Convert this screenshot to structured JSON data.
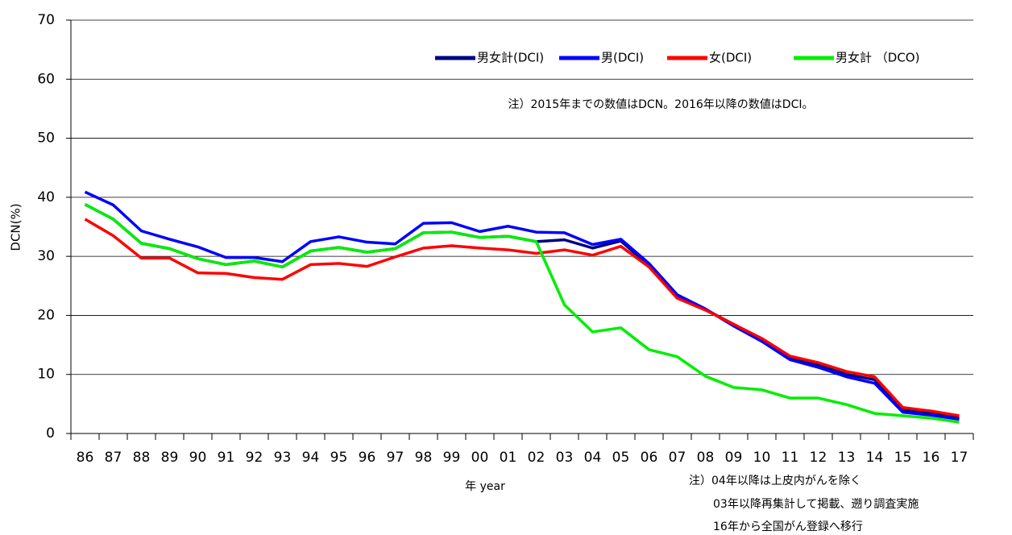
{
  "chart_data": {
    "type": "line",
    "x_label": "年 year",
    "y_label": "DCN(%)",
    "categories": [
      "86",
      "87",
      "88",
      "89",
      "90",
      "91",
      "92",
      "93",
      "94",
      "95",
      "96",
      "97",
      "98",
      "99",
      "00",
      "01",
      "02",
      "03",
      "04",
      "05",
      "06",
      "07",
      "08",
      "09",
      "10",
      "11",
      "12",
      "13",
      "14",
      "15",
      "16",
      "17"
    ],
    "series": [
      {
        "name": "男女計(DCI)",
        "color": "#000080",
        "values": [
          38.8,
          36.3,
          32.2,
          31.3,
          29.6,
          28.6,
          29.2,
          28.2,
          30.9,
          31.5,
          30.7,
          31.3,
          34.0,
          34.1,
          33.2,
          33.4,
          32.5,
          32.8,
          31.4,
          32.6,
          28.4,
          23.2,
          21.0,
          18.5,
          16.0,
          12.8,
          11.6,
          10.0,
          9.1,
          4.0,
          3.4,
          2.6
        ]
      },
      {
        "name": "男(DCI)",
        "color": "#0000ff",
        "values": [
          40.9,
          38.7,
          34.3,
          32.9,
          31.6,
          29.8,
          29.8,
          29.1,
          32.5,
          33.3,
          32.4,
          32.1,
          35.6,
          35.7,
          34.2,
          35.1,
          34.1,
          34.0,
          32.0,
          32.9,
          28.8,
          23.5,
          21.1,
          18.2,
          15.6,
          12.5,
          11.2,
          9.6,
          8.5,
          3.6,
          3.1,
          2.4
        ]
      },
      {
        "name": "女(DCI)",
        "color": "#ff0000",
        "values": [
          36.3,
          33.5,
          29.7,
          29.7,
          27.2,
          27.1,
          26.4,
          26.1,
          28.6,
          28.8,
          28.3,
          29.9,
          31.4,
          31.8,
          31.4,
          31.1,
          30.5,
          31.1,
          30.2,
          31.7,
          28.2,
          22.9,
          20.9,
          18.5,
          16.1,
          13.1,
          12.0,
          10.5,
          9.6,
          4.4,
          3.8,
          3.0
        ]
      },
      {
        "name": "男女計 （DCO)",
        "color": "#00ee00",
        "values": [
          38.8,
          36.3,
          32.2,
          31.3,
          29.6,
          28.6,
          29.2,
          28.2,
          30.9,
          31.5,
          30.7,
          31.3,
          34.0,
          34.1,
          33.2,
          33.4,
          32.5,
          21.8,
          17.2,
          17.9,
          14.2,
          13.0,
          9.7,
          7.8,
          7.4,
          6.0,
          6.0,
          4.9,
          3.4,
          3.0,
          2.6,
          1.9
        ]
      }
    ],
    "ylim": [
      0,
      70
    ],
    "yticks": [
      0,
      10,
      20,
      30,
      40,
      50,
      60,
      70
    ],
    "grid": true,
    "legend": "top-right",
    "annotation": "注）2015年までの数値はDCN。2016年以降の数値はDCI。",
    "notes": [
      "注）04年以降は上皮内がんを除く",
      "03年以降再集計して掲載、遡り調査実施",
      "16年から全国がん登録へ移行"
    ]
  }
}
